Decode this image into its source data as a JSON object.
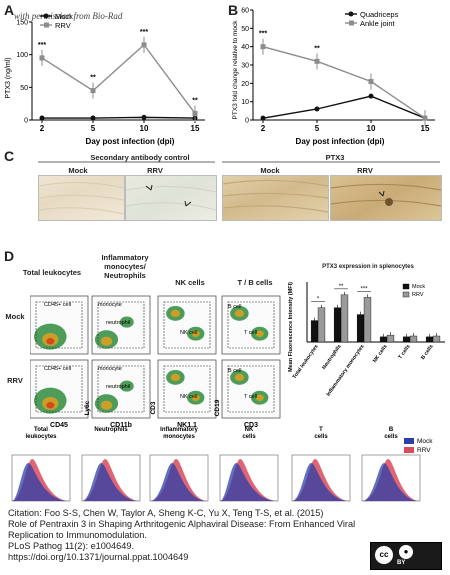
{
  "watermark": "with permission from Bio-Rad",
  "panel_letters": {
    "a": "A",
    "b": "B",
    "c": "C",
    "d": "D"
  },
  "panel_a": {
    "ylabel": "PTX3 (ng/ml)",
    "xlabel": "Day post infection (dpi)",
    "legend": [
      "Mock",
      "RRV"
    ],
    "yticks": [
      "0",
      "50",
      "100",
      "150"
    ],
    "xticks": [
      "2",
      "5",
      "10",
      "15"
    ],
    "sig": [
      "***",
      "**",
      "***",
      "**"
    ]
  },
  "panel_b": {
    "ylabel": "PTX3 fold change relative to mock",
    "xlabel": "Day post infection (dpi)",
    "legend": [
      "Quadriceps",
      "Ankle joint"
    ],
    "yticks": [
      "0",
      "10",
      "20",
      "30",
      "40",
      "50",
      "60"
    ],
    "xticks": [
      "2",
      "5",
      "10",
      "15"
    ],
    "sig": [
      "***",
      "**"
    ]
  },
  "panel_c": {
    "group1": "Secondary antibody control",
    "group2": "PTX3",
    "labels": [
      "Mock",
      "RRV",
      "Mock",
      "RRV"
    ]
  },
  "panel_d": {
    "col_titles": [
      "Total leukocytes",
      "Inflammatory monocytes/ Neutrophils",
      "NK cells",
      "T / B cells"
    ],
    "row_labels": [
      "Mock",
      "RRV"
    ],
    "gates_mock": [
      "CD45+ cell",
      "monocyte",
      "neutrophil",
      "NK cell",
      "B cell",
      "T cell"
    ],
    "gates_rrv": [
      "CD45+ cell",
      "monocyte",
      "neutrophil",
      "NK cell",
      "B cell",
      "T cell"
    ],
    "axes_x": [
      "CD45",
      "CD11b",
      "NK1.1",
      "CD3"
    ],
    "axes_y": [
      "SSC",
      "Ly6c",
      "CD3",
      "CD19"
    ],
    "bar_title": "PTX3 expression in splenocytes",
    "bar_ylabel": "Mean Fluorescence Intensity (MFI)",
    "bar_legend": [
      "Mock",
      "RRV"
    ],
    "bar_sig": [
      "*",
      "**",
      "***"
    ],
    "hist_titles": [
      "Total leukocytes",
      "Neutrophils",
      "Inflammatory monocytes",
      "NK cells",
      "T cells",
      "B cells"
    ],
    "hist_legend": [
      "Mock",
      "RRV"
    ]
  },
  "chart_data": [
    {
      "type": "line",
      "ylabel": "PTX3 (ng/ml)",
      "xlabel": "Day post infection (dpi)",
      "x": [
        2,
        5,
        10,
        15
      ],
      "ylim": [
        0,
        150
      ],
      "series": [
        {
          "name": "Mock",
          "values": [
            3,
            3,
            4,
            3
          ],
          "color": "#111111"
        },
        {
          "name": "RRV",
          "values": [
            95,
            45,
            115,
            10
          ],
          "color": "#8c8c8c"
        }
      ]
    },
    {
      "type": "line",
      "ylabel": "PTX3 fold change relative to mock",
      "xlabel": "Day post infection (dpi)",
      "x": [
        2,
        5,
        10,
        15
      ],
      "ylim": [
        0,
        60
      ],
      "series": [
        {
          "name": "Quadriceps",
          "values": [
            1,
            6,
            13,
            1
          ],
          "color": "#111111"
        },
        {
          "name": "Ankle joint",
          "values": [
            40,
            32,
            21,
            1
          ],
          "color": "#8c8c8c"
        }
      ]
    },
    {
      "type": "bar",
      "title": "PTX3 expression in splenocytes",
      "ylabel": "Mean Fluorescence Intensity (MFI)",
      "categories": [
        "Total leukocytes",
        "Neutrophils",
        "Inflammatory monocytes",
        "NK cells",
        "T cells",
        "B cells"
      ],
      "series": [
        {
          "name": "Mock",
          "values": [
            2.5,
            4.0,
            3.2,
            0.6,
            0.6,
            0.6
          ],
          "color": "#111111"
        },
        {
          "name": "RRV",
          "values": [
            4.0,
            5.5,
            5.2,
            0.8,
            0.7,
            0.7
          ],
          "color": "#9a9a9a"
        }
      ]
    }
  ],
  "citation": {
    "line1": "Citation: Foo S-S, Chen W, Taylor A, Sheng K-C, Yu X, Teng T-S, et al. (2015)",
    "line2": "Role of Pentraxin 3 in Shaping Arthritogenic Alphaviral Disease: From Enhanced Viral",
    "line3": "Replication to Immunomodulation.",
    "line4": "PLoS Pathog 11(2): e1004649.",
    "line5": "https://doi.org/10.1371/journal.ppat.1004649"
  },
  "license": {
    "cc": "cc",
    "by": "BY"
  }
}
